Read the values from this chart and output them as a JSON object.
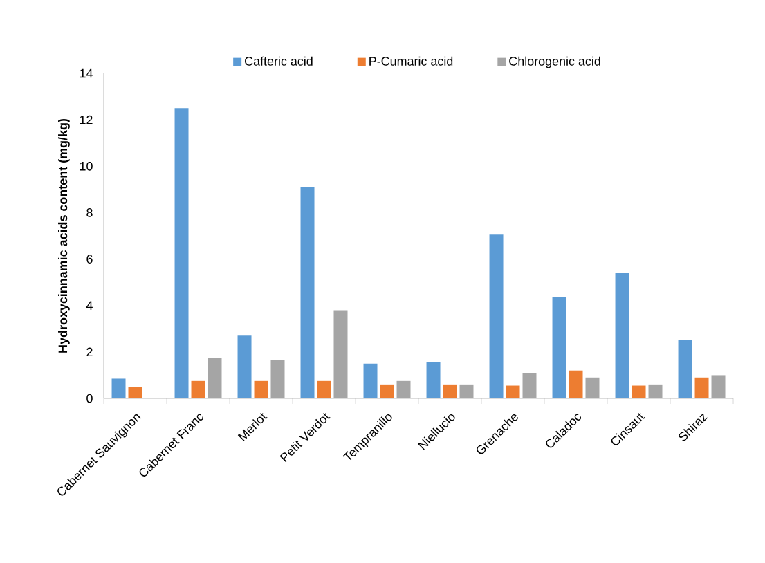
{
  "chart_data": {
    "type": "bar",
    "ylabel": "Hydroxycinnamic acids content (mg/kg)",
    "categories": [
      "Cabernet Sauvignon",
      "Cabernet Franc",
      "Merlot",
      "Petit Verdot",
      "Tempranillo",
      "Niellucio",
      "Grenache",
      "Caladoc",
      "Cinsaut",
      "Shiraz"
    ],
    "series": [
      {
        "name": "Cafteric acid",
        "color": "#5b9bd5",
        "values": [
          0.85,
          12.5,
          2.7,
          9.1,
          1.5,
          1.55,
          7.05,
          4.35,
          5.4,
          2.5
        ]
      },
      {
        "name": "P-Cumaric acid",
        "color": "#ed7d31",
        "values": [
          0.5,
          0.75,
          0.75,
          0.75,
          0.6,
          0.6,
          0.55,
          1.2,
          0.55,
          0.9
        ]
      },
      {
        "name": "Chlorogenic acid",
        "color": "#a5a5a5",
        "values": [
          null,
          1.75,
          1.65,
          3.8,
          0.75,
          0.6,
          1.1,
          0.9,
          0.6,
          1.0
        ]
      }
    ],
    "ylim": [
      0,
      14
    ],
    "yticks": [
      0,
      2,
      4,
      6,
      8,
      10,
      12,
      14
    ],
    "grid": false,
    "legend": "top"
  }
}
